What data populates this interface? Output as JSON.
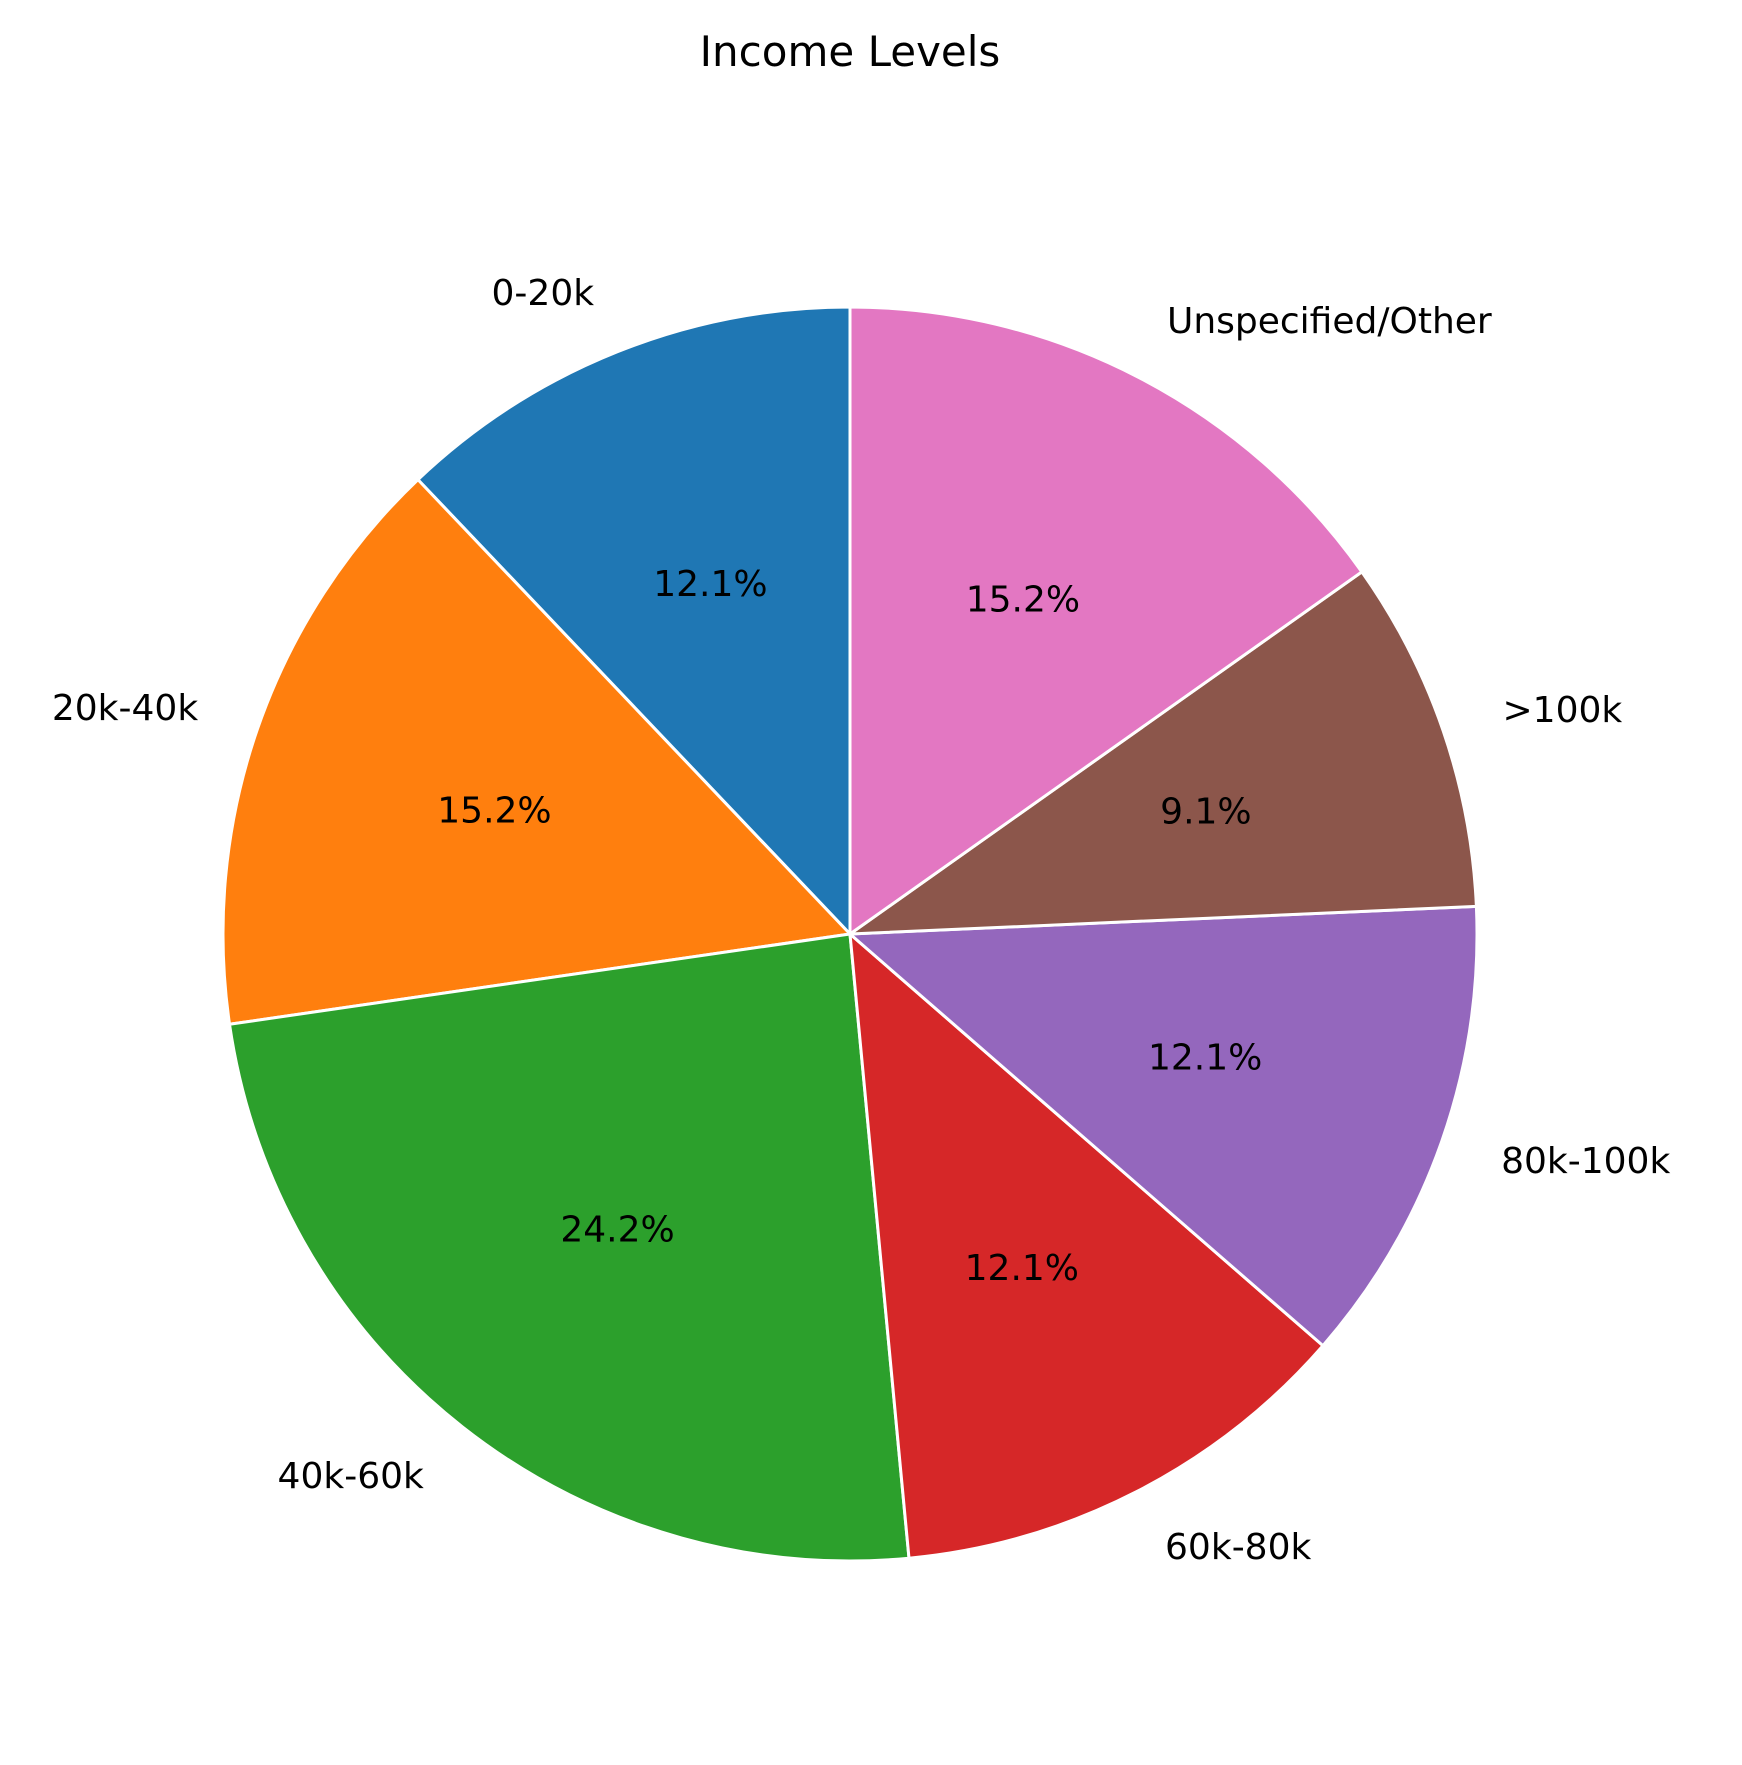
{
  "chart_data": {
    "type": "pie",
    "title": "Income Levels",
    "categories": [
      "0-20k",
      "20k-40k",
      "40k-60k",
      "60k-80k",
      "80k-100k",
      ">100k",
      "Unspecified/Other"
    ],
    "values": [
      12.1,
      15.2,
      24.2,
      12.1,
      12.1,
      9.1,
      15.2
    ],
    "value_labels": [
      "12.1%",
      "15.2%",
      "24.2%",
      "12.1%",
      "12.1%",
      "9.1%",
      "15.2%"
    ],
    "colors": [
      "#1f77b4",
      "#ff7f0e",
      "#2ca02c",
      "#d62728",
      "#9467bd",
      "#8c564b",
      "#e377c2"
    ],
    "start_angle_deg": 90,
    "direction": "counterclockwise",
    "edge_color": "#ffffff",
    "legend": "none"
  }
}
